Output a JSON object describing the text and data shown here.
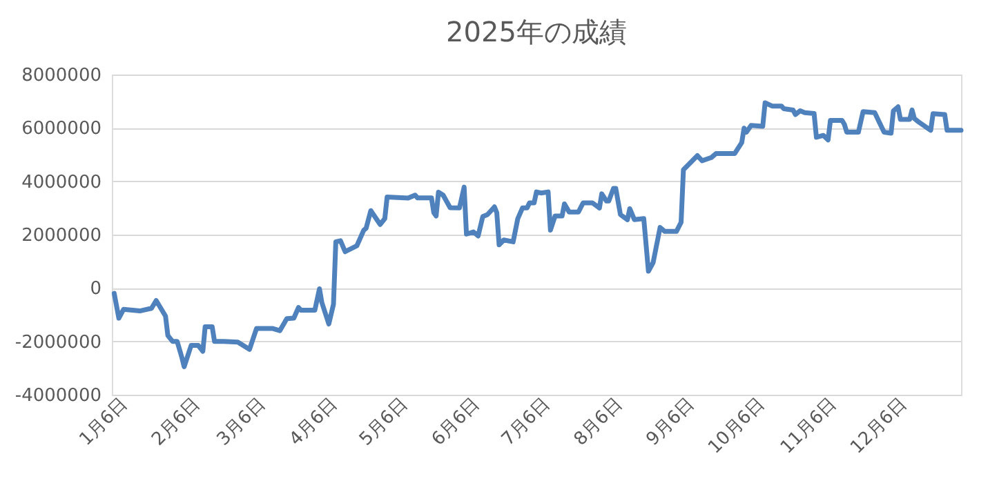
{
  "chart_data": {
    "type": "line",
    "title": "2025年の成績",
    "x": [
      "2025-01-02",
      "2025-01-04",
      "2025-01-06",
      "2025-01-13",
      "2025-01-18",
      "2025-01-20",
      "2025-01-22",
      "2025-01-24",
      "2025-01-25",
      "2025-01-27",
      "2025-01-29",
      "2025-01-31",
      "2025-02-01",
      "2025-02-04",
      "2025-02-07",
      "2025-02-09",
      "2025-02-10",
      "2025-02-13",
      "2025-02-14",
      "2025-02-18",
      "2025-02-24",
      "2025-03-01",
      "2025-03-04",
      "2025-03-11",
      "2025-03-14",
      "2025-03-17",
      "2025-03-20",
      "2025-03-22",
      "2025-03-23",
      "2025-03-29",
      "2025-03-31",
      "2025-04-01",
      "2025-04-04",
      "2025-04-06",
      "2025-04-07",
      "2025-04-09",
      "2025-04-11",
      "2025-04-16",
      "2025-04-19",
      "2025-04-20",
      "2025-04-22",
      "2025-04-26",
      "2025-04-28",
      "2025-04-29",
      "2025-05-08",
      "2025-05-11",
      "2025-05-12",
      "2025-05-18",
      "2025-05-19",
      "2025-05-20",
      "2025-05-21",
      "2025-05-23",
      "2025-05-26",
      "2025-05-30",
      "2025-06-01",
      "2025-06-02",
      "2025-06-05",
      "2025-06-07",
      "2025-06-09",
      "2025-06-11",
      "2025-06-14",
      "2025-06-15",
      "2025-06-16",
      "2025-06-18",
      "2025-06-22",
      "2025-06-24",
      "2025-06-26",
      "2025-06-28",
      "2025-06-29",
      "2025-07-01",
      "2025-07-02",
      "2025-07-04",
      "2025-07-07",
      "2025-07-08",
      "2025-07-10",
      "2025-07-13",
      "2025-07-14",
      "2025-07-16",
      "2025-07-20",
      "2025-07-22",
      "2025-07-26",
      "2025-07-29",
      "2025-07-30",
      "2025-08-01",
      "2025-08-02",
      "2025-08-04",
      "2025-08-05",
      "2025-08-07",
      "2025-08-10",
      "2025-08-11",
      "2025-08-13",
      "2025-08-17",
      "2025-08-19",
      "2025-08-21",
      "2025-08-24",
      "2025-08-26",
      "2025-08-31",
      "2025-09-02",
      "2025-09-03",
      "2025-09-09",
      "2025-09-11",
      "2025-09-15",
      "2025-09-17",
      "2025-09-25",
      "2025-09-28",
      "2025-09-29",
      "2025-09-30",
      "2025-10-02",
      "2025-10-07",
      "2025-10-08",
      "2025-10-11",
      "2025-10-15",
      "2025-10-16",
      "2025-10-20",
      "2025-10-21",
      "2025-10-23",
      "2025-10-25",
      "2025-10-29",
      "2025-10-30",
      "2025-11-02",
      "2025-11-04",
      "2025-11-05",
      "2025-11-10",
      "2025-11-11",
      "2025-11-12",
      "2025-11-17",
      "2025-11-19",
      "2025-11-24",
      "2025-11-28",
      "2025-12-01",
      "2025-12-02",
      "2025-12-04",
      "2025-12-05",
      "2025-12-09",
      "2025-12-10",
      "2025-12-11",
      "2025-12-13",
      "2025-12-18",
      "2025-12-19",
      "2025-12-24",
      "2025-12-25",
      "2025-12-31"
    ],
    "series": [
      {
        "color": "#4f81bd",
        "values": [
          -200000,
          -1130000,
          -800000,
          -860000,
          -760000,
          -470000,
          -760000,
          -1050000,
          -1780000,
          -2000000,
          -2000000,
          -2600000,
          -2950000,
          -2150000,
          -2150000,
          -2370000,
          -1450000,
          -1450000,
          -2000000,
          -2000000,
          -2030000,
          -2300000,
          -1520000,
          -1520000,
          -1600000,
          -1150000,
          -1130000,
          -730000,
          -830000,
          -830000,
          -30000,
          -540000,
          -1350000,
          -610000,
          1730000,
          1770000,
          1360000,
          1580000,
          2170000,
          2240000,
          2900000,
          2380000,
          2600000,
          3410000,
          3370000,
          3480000,
          3380000,
          3380000,
          2820000,
          2700000,
          3590000,
          3480000,
          3010000,
          3000000,
          3780000,
          2020000,
          2100000,
          1950000,
          2680000,
          2750000,
          3040000,
          2820000,
          1620000,
          1800000,
          1730000,
          2600000,
          3000000,
          3000000,
          3190000,
          3190000,
          3600000,
          3560000,
          3600000,
          2170000,
          2700000,
          2700000,
          3150000,
          2850000,
          2850000,
          3190000,
          3190000,
          3000000,
          3530000,
          3260000,
          3260000,
          3730000,
          3730000,
          2750000,
          2560000,
          2970000,
          2560000,
          2600000,
          630000,
          950000,
          2270000,
          2120000,
          2120000,
          2460000,
          4430000,
          4960000,
          4770000,
          4890000,
          5040000,
          5040000,
          5450000,
          5990000,
          5840000,
          6090000,
          6060000,
          6940000,
          6820000,
          6820000,
          6720000,
          6670000,
          6500000,
          6640000,
          6570000,
          6540000,
          5650000,
          5720000,
          5550000,
          6280000,
          6280000,
          6130000,
          5840000,
          5840000,
          6610000,
          6570000,
          5840000,
          5800000,
          6640000,
          6790000,
          6320000,
          6320000,
          6670000,
          6350000,
          6210000,
          5910000,
          6530000,
          6500000,
          5910000,
          5910000
        ]
      }
    ],
    "xlim": [
      "2025-01-01",
      "2025-12-31"
    ],
    "xticks": [
      {
        "value": "2025-01-06",
        "label": "1月6日"
      },
      {
        "value": "2025-02-06",
        "label": "2月6日"
      },
      {
        "value": "2025-03-06",
        "label": "3月6日"
      },
      {
        "value": "2025-04-06",
        "label": "4月6日"
      },
      {
        "value": "2025-05-06",
        "label": "5月6日"
      },
      {
        "value": "2025-06-06",
        "label": "6月6日"
      },
      {
        "value": "2025-07-06",
        "label": "7月6日"
      },
      {
        "value": "2025-08-06",
        "label": "8月6日"
      },
      {
        "value": "2025-09-06",
        "label": "9月6日"
      },
      {
        "value": "2025-10-06",
        "label": "10月6日"
      },
      {
        "value": "2025-11-06",
        "label": "11月6日"
      },
      {
        "value": "2025-12-06",
        "label": "12月6日"
      }
    ],
    "ylim": [
      -4000000,
      8000000
    ],
    "yticks": [
      -4000000,
      -2000000,
      0,
      2000000,
      4000000,
      6000000,
      8000000
    ],
    "grid": "y"
  }
}
